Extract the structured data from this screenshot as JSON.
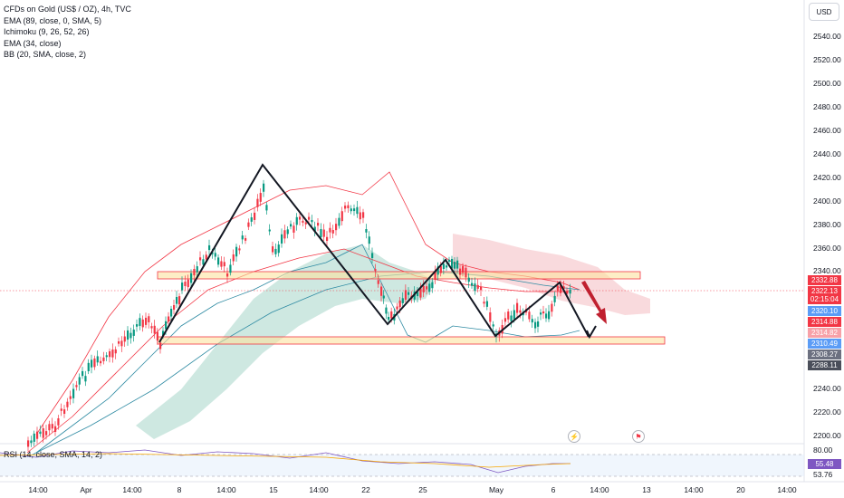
{
  "legend": {
    "title": "CFDs on Gold (US$ / OZ), 4h, TVC",
    "studies": [
      "EMA (89, close, 0, SMA, 5)",
      "Ichimoku (9, 26, 52, 26)",
      "EMA (34, close)",
      "BB (20, SMA, close, 2)"
    ]
  },
  "rsi_legend": "RSI (14, close, SMA, 14, 2)",
  "currency": "USD",
  "price_axis": [
    "2540.00",
    "2520.00",
    "2500.00",
    "2480.00",
    "2460.00",
    "2440.00",
    "2420.00",
    "2400.00",
    "2380.00",
    "2360.00",
    "2340.00",
    "2240.00",
    "2220.00",
    "2200.00"
  ],
  "rsi_axis": [
    "80.00",
    "55.48",
    "53.76"
  ],
  "time_axis": [
    "14:00",
    "Apr",
    "14:00",
    "8",
    "14:00",
    "15",
    "14:00",
    "22",
    "25",
    "May",
    "6",
    "14:00",
    "13",
    "14:00",
    "20",
    "14:00"
  ],
  "price_tags": [
    {
      "label": "2332.88",
      "color": "#f23645"
    },
    {
      "label": "2322.13",
      "sub": "02:15:04",
      "color": "#f23645"
    },
    {
      "label": "2320.10",
      "color": "#5b9cf6"
    },
    {
      "label": "2314.88",
      "color": "#f23645"
    },
    {
      "label": "2314.82",
      "color": "#f7a1a8"
    },
    {
      "label": "2310.49",
      "color": "#5b9cf6"
    },
    {
      "label": "2308.27",
      "color": "#6c7080"
    },
    {
      "label": "2288.11",
      "color": "#4a4e5a"
    }
  ],
  "event_icons": [
    "bolt-icon",
    "flag-icon"
  ],
  "colors": {
    "up": "#089981",
    "down": "#f23645",
    "zone": "#fbe3a0",
    "zone_border": "#f23645",
    "cloud_green": "#a5d6c8",
    "cloud_red": "#f5c2c7"
  }
}
